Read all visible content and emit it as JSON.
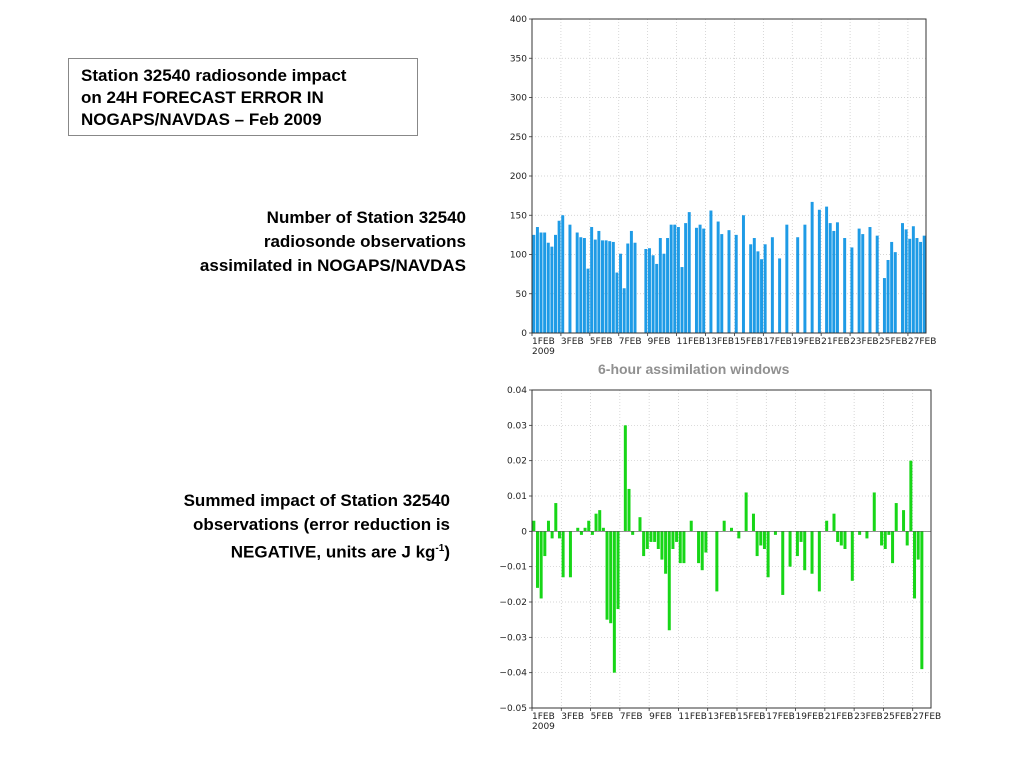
{
  "title_box": {
    "lines": [
      "Station 32540 radiosonde impact",
      "on 24H FORECAST ERROR IN",
      "NOGAPS/NAVDAS – Feb 2009"
    ]
  },
  "annotation_count": {
    "lines": [
      "Number of Station 32540",
      "radiosonde  observations",
      "assimilated in NOGAPS/NAVDAS"
    ]
  },
  "annotation_impact": {
    "line1": "Summed impact of Station 32540",
    "line2": "observations (error reduction is",
    "line3_pre": "NEGATIVE, units are J kg",
    "line3_sup": "-1",
    "line3_post": ")"
  },
  "caption": "6-hour assimilation windows",
  "colors": {
    "count_bars": "#1e9be6",
    "impact_bars": "#17d617"
  },
  "chart_data": [
    {
      "type": "bar",
      "x_tick_labels": [
        "1FEB",
        "3FEB",
        "5FEB",
        "7FEB",
        "9FEB",
        "11FEB",
        "13FEB",
        "15FEB",
        "17FEB",
        "19FEB",
        "21FEB",
        "23FEB",
        "25FEB",
        "27FEB"
      ],
      "x_year_label": "2009",
      "ylim": [
        0,
        400
      ],
      "yticks": [
        0,
        50,
        100,
        150,
        200,
        250,
        300,
        350,
        400
      ],
      "ytick_labels": [
        "0",
        "50",
        "100",
        "150",
        "200",
        "250",
        "300",
        "350",
        "400"
      ],
      "grid": true,
      "values": [
        125,
        135,
        128,
        128,
        115,
        110,
        125,
        143,
        150,
        0,
        138,
        0,
        128,
        122,
        121,
        82,
        135,
        119,
        130,
        118,
        118,
        117,
        116,
        77,
        101,
        57,
        114,
        130,
        115,
        0,
        0,
        107,
        108,
        99,
        88,
        121,
        101,
        121,
        138,
        138,
        135,
        84,
        140,
        154,
        0,
        134,
        138,
        133,
        0,
        156,
        0,
        142,
        126,
        0,
        131,
        0,
        125,
        0,
        150,
        0,
        113,
        121,
        104,
        94,
        113,
        0,
        122,
        0,
        95,
        0,
        138,
        0,
        0,
        122,
        0,
        138,
        0,
        167,
        0,
        157,
        0,
        161,
        140,
        130,
        141,
        0,
        121,
        0,
        109,
        0,
        133,
        126,
        0,
        135,
        0,
        124,
        0,
        70,
        93,
        116,
        103,
        0,
        140,
        132,
        120,
        136,
        121,
        116,
        124
      ],
      "xlabel": "",
      "ylabel": "",
      "title": ""
    },
    {
      "type": "bar",
      "x_tick_labels": [
        "1FEB",
        "3FEB",
        "5FEB",
        "7FEB",
        "9FEB",
        "11FEB",
        "13FEB",
        "15FEB",
        "17FEB",
        "19FEB",
        "21FEB",
        "23FEB",
        "25FEB",
        "27FEB"
      ],
      "x_year_label": "2009",
      "ylim": [
        -0.05,
        0.04
      ],
      "yticks": [
        -0.05,
        -0.04,
        -0.03,
        -0.02,
        -0.01,
        0,
        0.01,
        0.02,
        0.03,
        0.04
      ],
      "ytick_labels": [
        "−0.05",
        "−0.04",
        "−0.03",
        "−0.02",
        "−0.01",
        "0",
        "0.01",
        "0.02",
        "0.03",
        "0.04"
      ],
      "grid": true,
      "values": [
        0.003,
        -0.016,
        -0.019,
        -0.007,
        0.003,
        -0.002,
        0.008,
        -0.002,
        -0.013,
        0,
        -0.013,
        0,
        0.001,
        -0.001,
        0.001,
        0.003,
        -0.001,
        0.005,
        0.006,
        0.001,
        -0.025,
        -0.026,
        -0.04,
        -0.022,
        0,
        0.03,
        0.012,
        -0.001,
        0,
        0.004,
        -0.007,
        -0.005,
        -0.003,
        -0.003,
        -0.005,
        -0.008,
        -0.012,
        -0.028,
        -0.005,
        -0.003,
        -0.009,
        -0.009,
        0,
        0.003,
        0,
        -0.009,
        -0.011,
        -0.006,
        0,
        0,
        -0.017,
        0,
        0.003,
        0,
        0.001,
        0,
        -0.002,
        0,
        0.011,
        0,
        0.005,
        -0.007,
        -0.004,
        -0.005,
        -0.013,
        0,
        -0.001,
        0,
        -0.018,
        0,
        -0.01,
        0,
        -0.007,
        -0.003,
        -0.011,
        0,
        -0.012,
        0,
        -0.017,
        0,
        0.003,
        0,
        0.005,
        -0.003,
        -0.004,
        -0.005,
        0,
        -0.014,
        0,
        -0.001,
        0,
        -0.002,
        0,
        0.011,
        0,
        -0.004,
        -0.005,
        -0.001,
        -0.009,
        0.008,
        0,
        0.006,
        -0.004,
        0.02,
        -0.019,
        -0.008,
        -0.039,
        0,
        0
      ],
      "xlabel": "",
      "ylabel": "",
      "title": ""
    }
  ]
}
